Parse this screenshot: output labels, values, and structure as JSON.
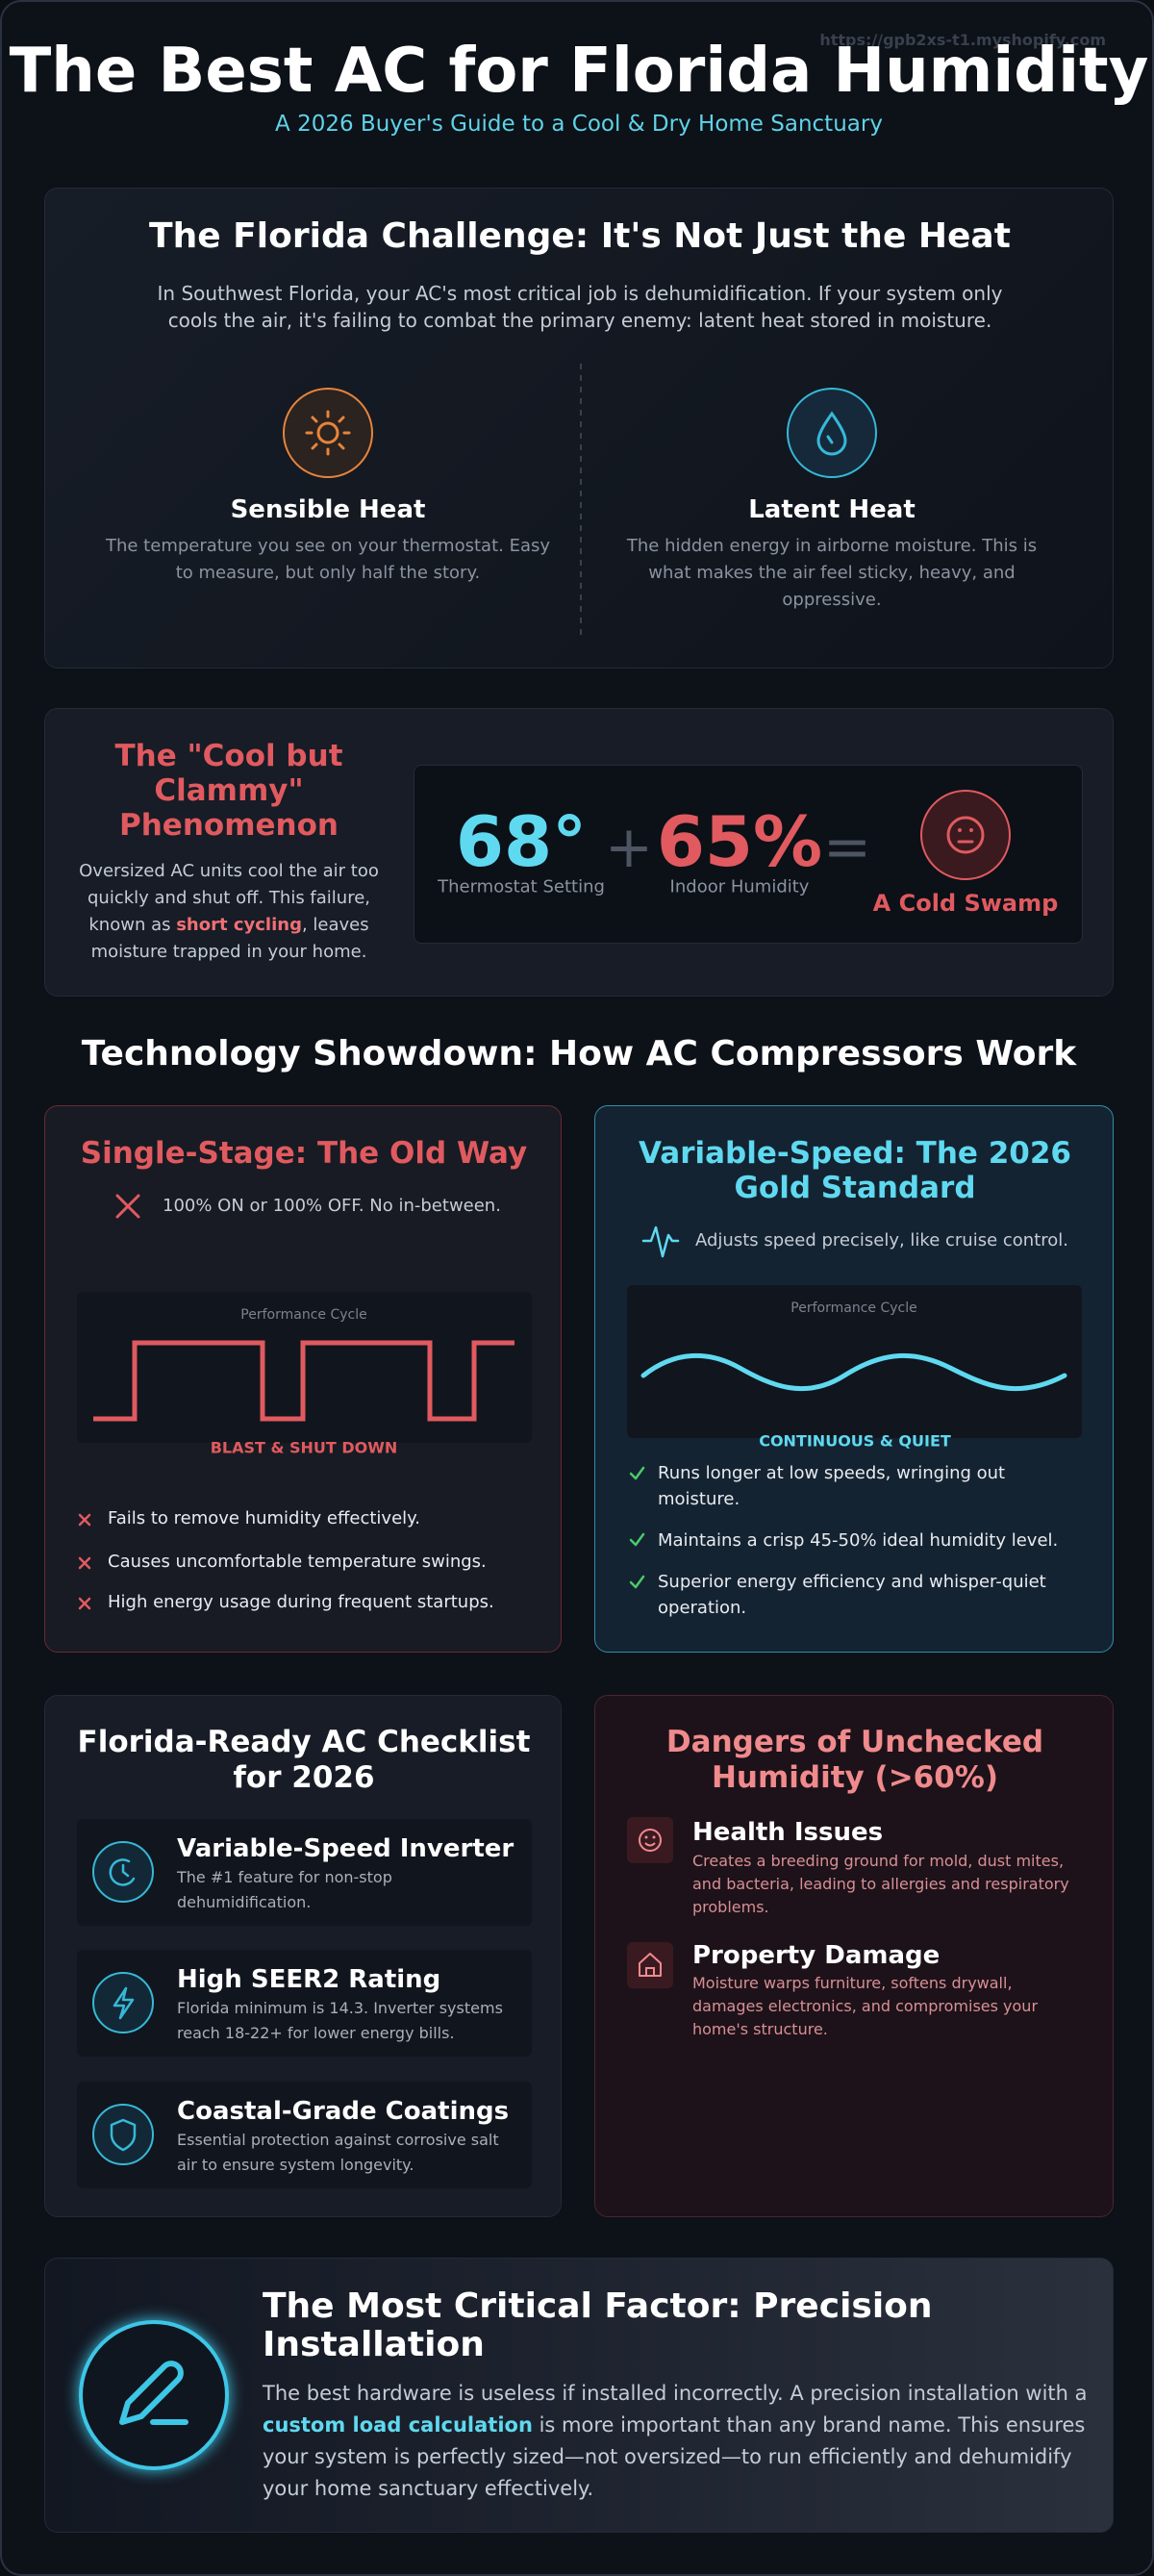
{
  "watermark": "https://gpb2xs-t1.myshopify.com",
  "header": {
    "title": "The Best AC for Florida Humidity",
    "subtitle": "A 2026 Buyer's Guide to a Cool & Dry Home Sanctuary"
  },
  "challenge": {
    "title": "The Florida Challenge: It's Not Just the Heat",
    "text": "In Southwest Florida, your AC's most critical job is dehumidification. If your system only cools the air, it's failing to combat the primary enemy: latent heat stored in moisture.",
    "items": [
      {
        "title": "Sensible Heat",
        "text": "The temperature you see on your thermostat. Easy to measure, but only half the story."
      },
      {
        "title": "Latent Heat",
        "text": "The hidden energy in airborne moisture. This is what makes the air feel sticky, heavy, and oppressive."
      }
    ]
  },
  "clammy": {
    "title": "The \"Cool but Clammy\" Phenomenon",
    "text_before": "Oversized AC units cool the air too quickly and shut off. This failure, known as ",
    "highlight": "short cycling",
    "text_after": ", leaves moisture trapped in your home.",
    "equation": {
      "temperature": "68°",
      "temperature_label": "Thermostat Setting",
      "plus": "+",
      "humidity": "65%",
      "humidity_label": "Indoor Humidity",
      "equals": "=",
      "result": "A Cold Swamp"
    }
  },
  "showdown": {
    "title": "Technology Showdown: How AC Compressors Work",
    "single": {
      "title": "Single-Stage: The Old Way",
      "summary": "100% ON or 100% OFF. No in-between.",
      "chart_label": "Performance Cycle",
      "chart_caption": "BLAST & SHUT DOWN",
      "points": [
        "Fails to remove humidity effectively.",
        "Causes uncomfortable temperature swings.",
        "High energy usage during frequent startups."
      ]
    },
    "variable": {
      "title": "Variable-Speed: The 2026 Gold Standard",
      "summary": "Adjusts speed precisely, like cruise control.",
      "chart_label": "Performance Cycle",
      "chart_caption": "CONTINUOUS & QUIET",
      "points": [
        "Runs longer at low speeds, wringing out moisture.",
        "Maintains a crisp 45-50% ideal humidity level.",
        "Superior energy efficiency and whisper-quiet operation."
      ]
    }
  },
  "checklist": {
    "title": "Florida-Ready AC Checklist for 2026",
    "items": [
      {
        "title": "Variable-Speed Inverter",
        "text": "The #1 feature for non-stop dehumidification."
      },
      {
        "title": "High SEER2 Rating",
        "text": "Florida minimum is 14.3. Inverter systems reach 18-22+ for lower energy bills."
      },
      {
        "title": "Coastal-Grade Coatings",
        "text": "Essential protection against corrosive salt air to ensure system longevity."
      }
    ]
  },
  "dangers": {
    "title": "Dangers of Unchecked Humidity (>60%)",
    "items": [
      {
        "title": "Health Issues",
        "text": "Creates a breeding ground for mold, dust mites, and bacteria, leading to allergies and respiratory problems."
      },
      {
        "title": "Property Damage",
        "text": "Moisture warps furniture, softens drywall, damages electronics, and compromises your home's structure."
      }
    ]
  },
  "installation": {
    "title": "The Most Critical Factor: Precision Installation",
    "text_before": "The best hardware is useless if installed incorrectly. A precision installation with a ",
    "highlight": "custom load calculation",
    "text_after": " is more important than any brand name. This ensures your system is perfectly sized—not oversized—to run efficiently and dehumidify your home sanctuary effectively."
  }
}
